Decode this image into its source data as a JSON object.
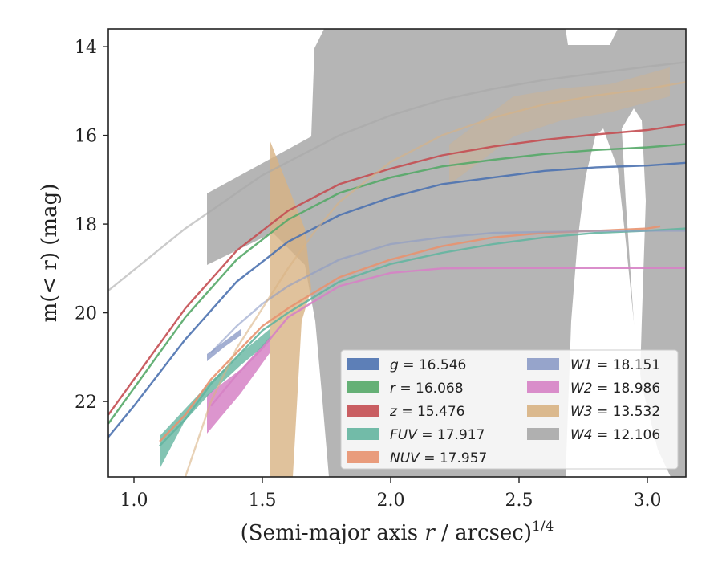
{
  "chart_data": {
    "type": "line",
    "title": "",
    "xlabel_main": "(Semi-major axis ",
    "xlabel_var": "r",
    "xlabel_rest": " / arcsec)",
    "xlabel_sup": "1/4",
    "ylabel_main": "m(< r) (mag)",
    "xlim": [
      0.9,
      3.15
    ],
    "ylim": [
      23.7,
      13.6
    ],
    "y_inverted": true,
    "xticks": [
      "1.0",
      "1.5",
      "2.0",
      "2.5",
      "3.0"
    ],
    "xtick_values": [
      1.0,
      1.5,
      2.0,
      2.5,
      3.0
    ],
    "yticks": [
      "14",
      "16",
      "18",
      "20",
      "22"
    ],
    "ytick_values": [
      14,
      16,
      18,
      20,
      22
    ],
    "grid": false,
    "legend_position": "lower-right",
    "series": [
      {
        "name": "g",
        "total": "16.546",
        "color": "#4c72b0",
        "x": [
          0.9,
          1.0,
          1.2,
          1.4,
          1.6,
          1.8,
          2.0,
          2.2,
          2.4,
          2.6,
          2.8,
          3.0,
          3.15
        ],
        "y": [
          22.8,
          22.1,
          20.6,
          19.3,
          18.4,
          17.8,
          17.4,
          17.1,
          16.95,
          16.8,
          16.72,
          16.68,
          16.62
        ]
      },
      {
        "name": "r",
        "total": "16.068",
        "color": "#55a868",
        "x": [
          0.9,
          1.0,
          1.2,
          1.4,
          1.6,
          1.8,
          2.0,
          2.2,
          2.4,
          2.6,
          2.8,
          3.0,
          3.15
        ],
        "y": [
          22.5,
          21.7,
          20.1,
          18.8,
          17.9,
          17.3,
          16.95,
          16.7,
          16.55,
          16.42,
          16.33,
          16.27,
          16.2
        ]
      },
      {
        "name": "z",
        "total": "15.476",
        "color": "#c44e52",
        "x": [
          0.9,
          1.0,
          1.2,
          1.4,
          1.6,
          1.8,
          2.0,
          2.2,
          2.4,
          2.6,
          2.8,
          3.0,
          3.15
        ],
        "y": [
          22.3,
          21.5,
          19.9,
          18.6,
          17.7,
          17.1,
          16.75,
          16.45,
          16.25,
          16.1,
          15.98,
          15.88,
          15.75
        ]
      },
      {
        "name": "FUV",
        "total": "17.917",
        "color": "#64b5a0",
        "x": [
          1.1,
          1.2,
          1.3,
          1.4,
          1.5,
          1.6,
          1.8,
          2.0,
          2.2,
          2.4,
          2.6,
          2.8,
          3.0,
          3.15
        ],
        "y": [
          23.0,
          22.4,
          21.6,
          21.0,
          20.4,
          20.0,
          19.3,
          18.9,
          18.65,
          18.45,
          18.3,
          18.2,
          18.15,
          18.1
        ]
      },
      {
        "name": "NUV",
        "total": "17.957",
        "color": "#e8926f",
        "x": [
          1.1,
          1.2,
          1.3,
          1.4,
          1.5,
          1.6,
          1.8,
          2.0,
          2.2,
          2.4,
          2.6,
          2.8,
          3.0,
          3.05
        ],
        "y": [
          22.9,
          22.3,
          21.5,
          20.9,
          20.3,
          19.9,
          19.2,
          18.8,
          18.5,
          18.3,
          18.2,
          18.15,
          18.1,
          18.05
        ]
      },
      {
        "name": "W1",
        "total": "18.151",
        "color": "#8c9bc7",
        "x": [
          1.3,
          1.4,
          1.5,
          1.6,
          1.8,
          2.0,
          2.2,
          2.4,
          2.6,
          2.8,
          3.0,
          3.15
        ],
        "y": [
          20.9,
          20.3,
          19.8,
          19.4,
          18.8,
          18.45,
          18.3,
          18.2,
          18.18,
          18.16,
          18.15,
          18.15
        ]
      },
      {
        "name": "W2",
        "total": "18.986",
        "color": "#d682c5",
        "x": [
          1.3,
          1.4,
          1.5,
          1.6,
          1.8,
          2.0,
          2.2,
          2.4,
          2.6,
          2.8,
          3.0,
          3.15
        ],
        "y": [
          22.1,
          21.4,
          20.8,
          20.1,
          19.4,
          19.1,
          19.0,
          18.99,
          18.99,
          18.99,
          18.99,
          18.99
        ]
      },
      {
        "name": "W3",
        "total": "13.532",
        "color": "#d8b383",
        "x": [
          1.2,
          1.3,
          1.4,
          1.5,
          1.6,
          1.7,
          1.8,
          2.0,
          2.2,
          2.4,
          2.6,
          2.8,
          3.0,
          3.15
        ],
        "y": [
          23.7,
          22.0,
          20.8,
          19.9,
          19.0,
          18.2,
          17.5,
          16.6,
          16.0,
          15.6,
          15.3,
          15.1,
          14.95,
          14.8
        ]
      },
      {
        "name": "W4",
        "total": "12.106",
        "color": "#a8a8a8",
        "x": [
          0.9,
          1.2,
          1.5,
          1.8,
          2.0,
          2.2,
          2.4,
          2.6,
          2.8,
          3.0,
          3.15
        ],
        "y": [
          19.5,
          18.1,
          16.9,
          16.0,
          15.55,
          15.2,
          14.95,
          14.75,
          14.6,
          14.45,
          14.35
        ]
      }
    ]
  }
}
